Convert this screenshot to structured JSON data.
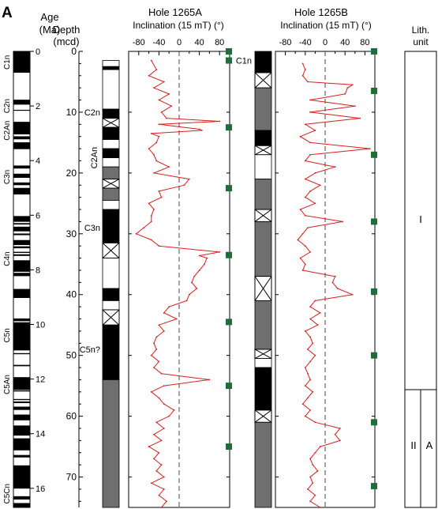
{
  "panel_label": "A",
  "age_column": {
    "title_line1": "Age",
    "title_line2": "(Ma)",
    "ticks": [
      "0",
      "2",
      "4",
      "6",
      "8",
      "10",
      "12",
      "14",
      "16"
    ],
    "chron_labels": [
      "C1n",
      "C2n",
      "C2An",
      "C3n",
      "C4n",
      "C5n",
      "C5An",
      "C5Cn"
    ]
  },
  "depth_axis": {
    "title_line1": "Depth",
    "title_line2": "(mcd)",
    "ticks": [
      "0",
      "10",
      "20",
      "30",
      "40",
      "50",
      "60",
      "70"
    ]
  },
  "polarity_1265A": {
    "labels": [
      "C2n",
      "C2An",
      "C3n",
      "C5n?"
    ]
  },
  "polarity_1265B": {
    "labels": [
      "C1n"
    ]
  },
  "lith": {
    "title_line1": "Lith.",
    "title_line2": "unit",
    "unit_upper": "I",
    "unit_lower": "II",
    "subunit_lower": "A"
  },
  "colors": {
    "curve": "#d42020",
    "marker": "#1f6e3a",
    "gray": "#6f6f6f"
  },
  "chart_data": [
    {
      "type": "line",
      "title": "Hole 1265A",
      "xlabel": "Inclination (15 mT) (°)",
      "ylabel": "Depth (mcd)",
      "xlim": [
        -100,
        100
      ],
      "ylim": [
        0,
        75
      ],
      "x_ticks": [
        "-80",
        "-40",
        "0",
        "40",
        "80"
      ],
      "series": [
        {
          "depth": [
            1.5,
            3,
            4,
            5,
            6,
            7,
            8,
            9,
            10,
            11,
            11.5,
            12,
            12.8,
            13,
            13.5,
            14,
            15,
            16,
            17,
            18,
            19,
            20,
            21,
            22,
            23,
            24,
            25,
            26,
            27,
            28,
            29,
            30,
            31,
            32,
            33,
            33.6,
            34,
            35,
            36,
            37,
            38,
            39,
            40,
            41,
            42,
            43,
            44,
            45,
            46,
            47,
            48,
            49,
            50,
            51,
            52,
            53,
            54,
            55,
            56,
            57,
            58,
            59,
            60,
            61,
            62,
            63,
            64,
            65,
            66,
            67,
            68,
            69,
            70,
            71,
            72,
            73,
            74,
            75
          ],
          "inclination": [
            -55,
            -45,
            -60,
            -30,
            -50,
            -20,
            -40,
            -15,
            -35,
            -25,
            80,
            -40,
            40,
            45,
            -55,
            -40,
            -45,
            -60,
            -50,
            -45,
            -20,
            -50,
            20,
            10,
            -40,
            -35,
            -60,
            -50,
            -55,
            -55,
            -70,
            -85,
            -55,
            -40,
            80,
            40,
            55,
            50,
            40,
            30,
            25,
            35,
            20,
            15,
            -20,
            -30,
            -5,
            -40,
            -30,
            -45,
            -50,
            -45,
            -55,
            -40,
            -50,
            -35,
            60,
            -30,
            -55,
            -40,
            -30,
            -10,
            -20,
            -45,
            -30,
            -50,
            -35,
            -60,
            -40,
            -50,
            -35,
            -45,
            -30,
            -55,
            -30,
            -40,
            -25,
            -35
          ]
        }
      ],
      "markers_depth": [
        0,
        1.5,
        12.5,
        22.5,
        33.5,
        44.5,
        55,
        65
      ]
    },
    {
      "type": "line",
      "title": "Hole 1265B",
      "xlabel": "Inclination (15 mT) (°)",
      "ylabel": "Depth (mcd)",
      "xlim": [
        -100,
        100
      ],
      "ylim": [
        0,
        75
      ],
      "x_ticks": [
        "-80",
        "-40",
        "0",
        "40",
        "80"
      ],
      "series": [
        {
          "depth": [
            2,
            3,
            4,
            5,
            5.5,
            6,
            7,
            8,
            9,
            10,
            11,
            12,
            13,
            14,
            15,
            16,
            17,
            18,
            19,
            20,
            21,
            22,
            23,
            24,
            25,
            26,
            27,
            28,
            29,
            30,
            31,
            32,
            33,
            34,
            35,
            36,
            37,
            38,
            39,
            40,
            41,
            42,
            43,
            44,
            45,
            46,
            47,
            48,
            49,
            50,
            51,
            52,
            53,
            54,
            55,
            56,
            57,
            58,
            59,
            60,
            61,
            62,
            63,
            64,
            65,
            66,
            67,
            68,
            69,
            70,
            71,
            72,
            73,
            74,
            75
          ],
          "inclination": [
            -45,
            -40,
            -45,
            -35,
            55,
            45,
            40,
            -30,
            60,
            -30,
            70,
            -40,
            -20,
            -50,
            -30,
            90,
            -30,
            -40,
            20,
            -20,
            -40,
            -10,
            -30,
            -40,
            -20,
            -50,
            -40,
            35,
            -35,
            -45,
            -55,
            -40,
            -30,
            -50,
            -40,
            -45,
            20,
            15,
            25,
            55,
            -20,
            -30,
            -10,
            -30,
            -15,
            -40,
            -30,
            -25,
            -35,
            -20,
            -30,
            -40,
            -35,
            -30,
            -40,
            -25,
            -35,
            -45,
            -30,
            -40,
            -20,
            30,
            20,
            30,
            -10,
            -20,
            -30,
            -25,
            -15,
            -30,
            -25,
            -35,
            -20,
            -30,
            -10
          ]
        }
      ],
      "markers_depth": [
        0,
        6.5,
        17,
        28,
        39.5,
        50,
        61,
        71.5
      ]
    }
  ]
}
